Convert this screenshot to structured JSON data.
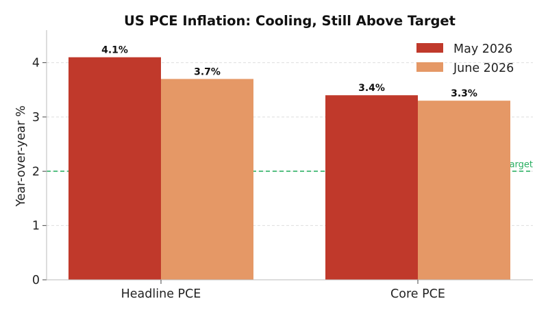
{
  "chart_data": {
    "type": "bar",
    "title": "US PCE Inflation: Cooling, Still Above Target",
    "xlabel": "",
    "ylabel": "Year-over-year %",
    "categories": [
      "Headline PCE",
      "Core PCE"
    ],
    "series": [
      {
        "name": "May 2026",
        "values": [
          4.1,
          3.4
        ],
        "labels": [
          "4.1%",
          "3.4%"
        ],
        "color": "#c0392b"
      },
      {
        "name": "June 2026",
        "values": [
          3.7,
          3.3
        ],
        "labels": [
          "3.7%",
          "3.3%"
        ],
        "color": "#e59866"
      }
    ],
    "yticks": [
      0,
      1,
      2,
      3,
      4
    ],
    "ylim": [
      0,
      4.6
    ],
    "grid": "y-dashed",
    "legend": "top-right",
    "reference_line": {
      "value": 2,
      "label": "Fed 2% target",
      "color": "#27ae60"
    }
  }
}
